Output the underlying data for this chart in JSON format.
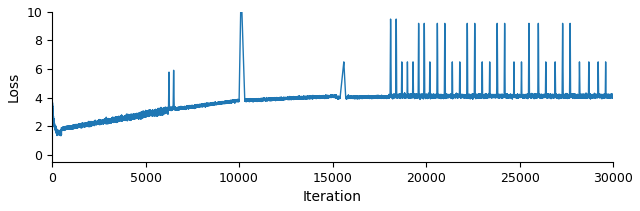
{
  "title": "",
  "xlabel": "Iteration",
  "ylabel": "Loss",
  "xlim": [
    0,
    30000
  ],
  "ylim": [
    -0.5,
    10
  ],
  "yticks": [
    0,
    2,
    4,
    6,
    8,
    10
  ],
  "xticks": [
    0,
    5000,
    10000,
    15000,
    20000,
    25000,
    30000
  ],
  "line_color": "#1f77b4",
  "line_width": 1.0,
  "figsize": [
    6.4,
    2.11
  ],
  "dpi": 100,
  "seed": 42
}
